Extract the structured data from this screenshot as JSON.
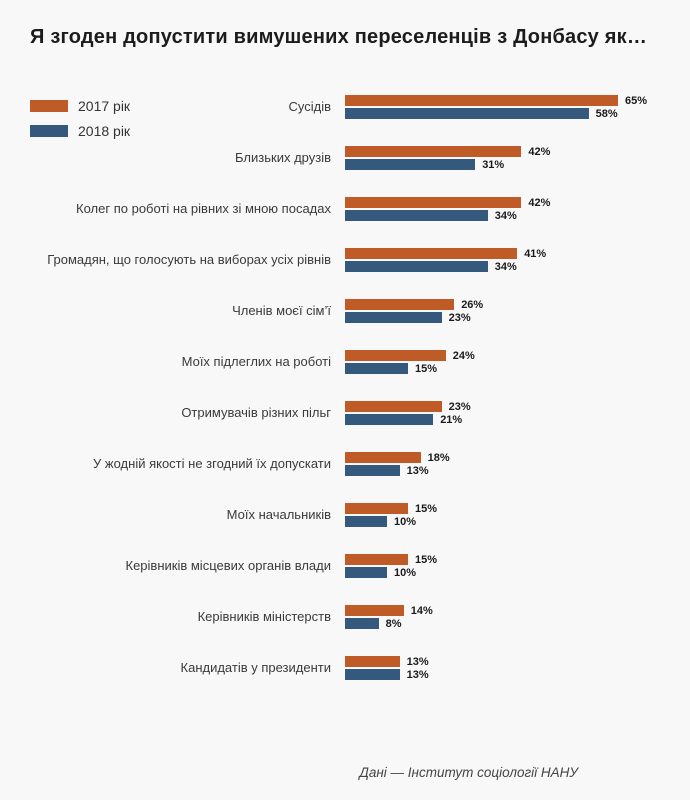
{
  "title": "Я згоден допустити вимушених переселенців з Донбасу як…",
  "legend": [
    {
      "label": "2017 рік",
      "color": "#bf5b26"
    },
    {
      "label": "2018 рік",
      "color": "#35597c"
    }
  ],
  "footer": "Дані — Інститут соціології НАНУ",
  "colors": {
    "series_2017": "#bf5b26",
    "series_2018": "#35597c",
    "background": "#f8f8f8"
  },
  "chart_data": {
    "type": "bar",
    "orientation": "horizontal",
    "title": "Я згоден допустити вимушених переселенців з Донбасу як…",
    "value_suffix": "%",
    "xlim": [
      0,
      70
    ],
    "grid": false,
    "legend_position": "top-left",
    "categories": [
      "Сусідів",
      "Близьких друзів",
      "Колег по роботі на рівних зі мною посадах",
      "Громадян, що голосують на виборах усіх рівнів",
      "Членів моєї сім’ї",
      "Моїх підлеглих на роботі",
      "Отримувачів різних пільг",
      "У жодній якості не згодний їх допускати",
      "Моїх начальників",
      "Керівників місцевих органів влади",
      "Керівників міністерств",
      "Кандидатів у президенти"
    ],
    "series": [
      {
        "name": "2017 рік",
        "color": "#bf5b26",
        "values": [
          65,
          42,
          42,
          41,
          26,
          24,
          23,
          18,
          15,
          15,
          14,
          13
        ]
      },
      {
        "name": "2018 рік",
        "color": "#35597c",
        "values": [
          58,
          31,
          34,
          34,
          23,
          15,
          21,
          13,
          10,
          10,
          8,
          13
        ]
      }
    ]
  }
}
